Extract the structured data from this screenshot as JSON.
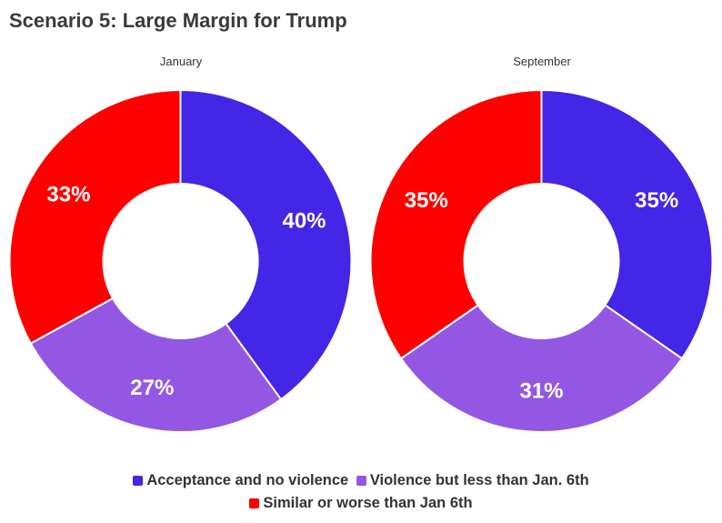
{
  "title": "Scenario 5: Large Margin for Trump",
  "chart_data": [
    {
      "type": "pie",
      "subtitle": "January",
      "categories": [
        "Acceptance and no violence",
        "Violence but less than Jan. 6th",
        "Similar or worse than Jan 6th"
      ],
      "values": [
        40,
        27,
        33
      ],
      "labels": [
        "40%",
        "27%",
        "33%"
      ]
    },
    {
      "type": "pie",
      "subtitle": "September",
      "categories": [
        "Acceptance and no violence",
        "Violence but less than Jan. 6th",
        "Similar or worse than Jan 6th"
      ],
      "values": [
        35,
        31,
        35
      ],
      "labels": [
        "35%",
        "31%",
        "35%"
      ]
    }
  ],
  "legend": {
    "placement": "bottom",
    "items": [
      {
        "label": "Acceptance and no violence",
        "color": "#4326e6"
      },
      {
        "label": "Violence but less than Jan. 6th",
        "color": "#9457e3"
      },
      {
        "label": "Similar or worse than Jan 6th",
        "color": "#fe0000"
      }
    ]
  },
  "colors": [
    "#4326e6",
    "#9457e3",
    "#fe0000"
  ]
}
